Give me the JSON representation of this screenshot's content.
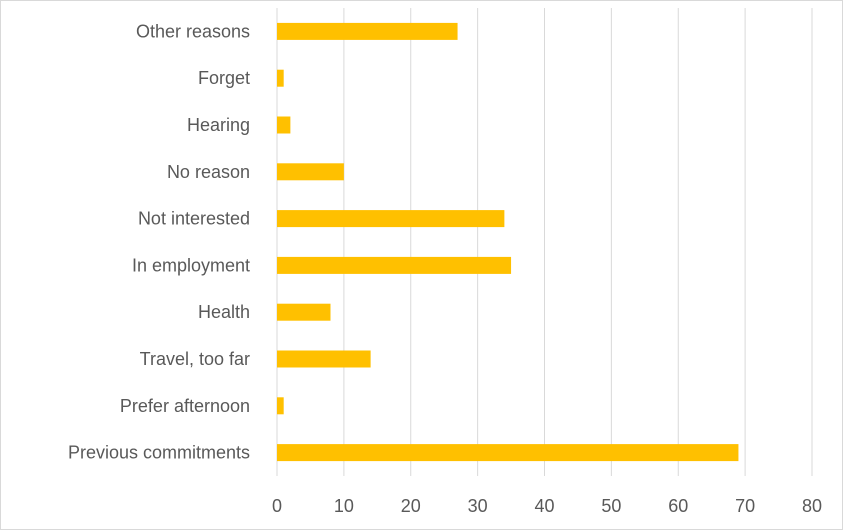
{
  "chart_data": {
    "type": "bar",
    "orientation": "horizontal",
    "categories": [
      "Previous commitments",
      "Prefer afternoon",
      "Travel, too far",
      "Health",
      "In employment",
      "Not interested",
      "No reason",
      "Hearing",
      "Forget",
      "Other reasons"
    ],
    "values": [
      69,
      1,
      14,
      8,
      35,
      34,
      10,
      2,
      1,
      27
    ],
    "xlim": [
      0,
      80
    ],
    "xticks": [
      "0",
      "10",
      "20",
      "30",
      "40",
      "50",
      "60",
      "70",
      "80"
    ],
    "title": "",
    "xlabel": "",
    "ylabel": "",
    "grid": "vertical",
    "legend": "none",
    "bar_color": "#FFC000",
    "grid_color": "#d9d9d9"
  }
}
